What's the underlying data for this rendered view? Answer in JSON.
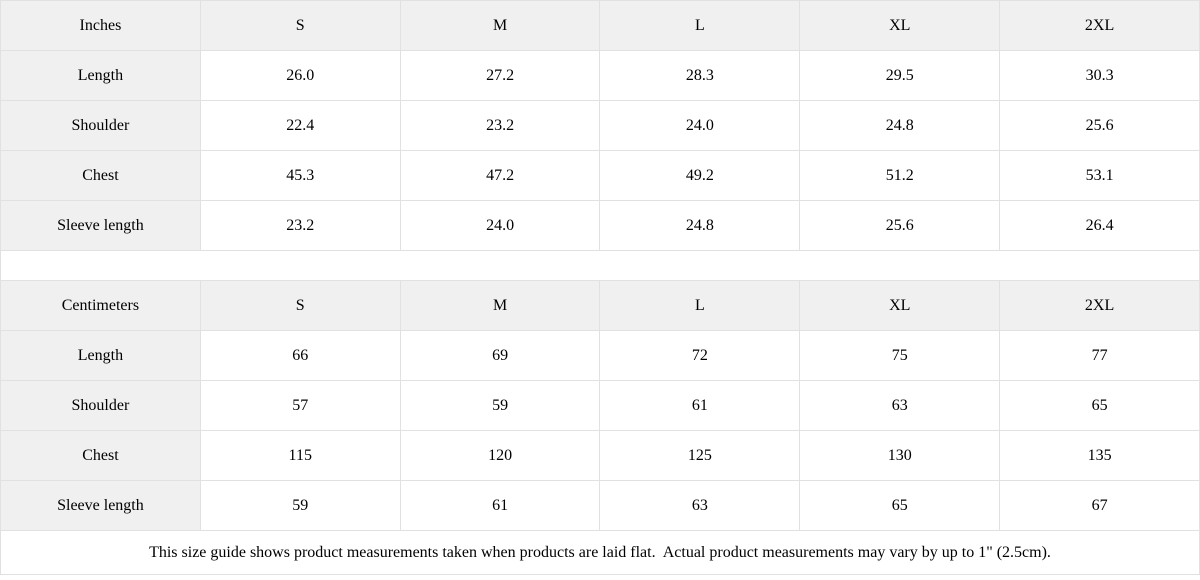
{
  "colors": {
    "label_background": "#f0f0f0",
    "cell_background": "#ffffff",
    "border": "#e1e1e1",
    "text": "#000000"
  },
  "size_guide": {
    "tables": [
      {
        "unit_label": "Inches",
        "size_columns": [
          "S",
          "M",
          "L",
          "XL",
          "2XL"
        ],
        "rows": [
          {
            "label": "Length",
            "values": [
              "26.0",
              "27.2",
              "28.3",
              "29.5",
              "30.3"
            ]
          },
          {
            "label": "Shoulder",
            "values": [
              "22.4",
              "23.2",
              "24.0",
              "24.8",
              "25.6"
            ]
          },
          {
            "label": "Chest",
            "values": [
              "45.3",
              "47.2",
              "49.2",
              "51.2",
              "53.1"
            ]
          },
          {
            "label": "Sleeve length",
            "values": [
              "23.2",
              "24.0",
              "24.8",
              "25.6",
              "26.4"
            ]
          }
        ]
      },
      {
        "unit_label": "Centimeters",
        "size_columns": [
          "S",
          "M",
          "L",
          "XL",
          "2XL"
        ],
        "rows": [
          {
            "label": "Length",
            "values": [
              "66",
              "69",
              "72",
              "75",
              "77"
            ]
          },
          {
            "label": "Shoulder",
            "values": [
              "57",
              "59",
              "61",
              "63",
              "65"
            ]
          },
          {
            "label": "Chest",
            "values": [
              "115",
              "120",
              "125",
              "130",
              "135"
            ]
          },
          {
            "label": "Sleeve length",
            "values": [
              "59",
              "61",
              "63",
              "65",
              "67"
            ]
          }
        ]
      }
    ],
    "footnote": "This size guide shows product measurements taken when products are laid flat.  Actual product measurements may vary by up to 1\" (2.5cm)."
  }
}
